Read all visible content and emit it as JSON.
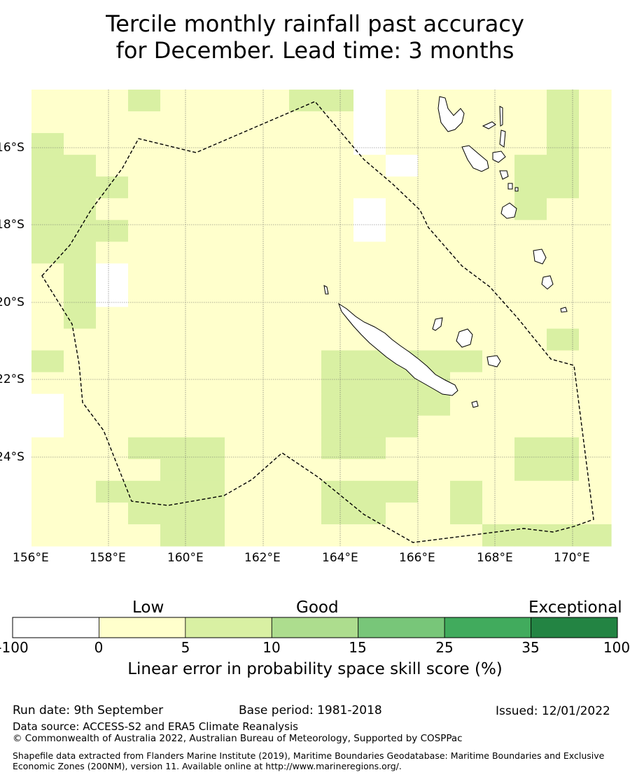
{
  "title_line1": "Tercile monthly rainfall past accuracy",
  "title_line2": "for December. Lead time: 3 months",
  "map": {
    "lon_ticks": [
      "156°E",
      "158°E",
      "160°E",
      "162°E",
      "164°E",
      "166°E",
      "168°E",
      "170°E"
    ],
    "lat_ticks": [
      "16°S",
      "18°S",
      "20°S",
      "22°S",
      "24°S"
    ],
    "colors": {
      "neg": "#ffffff",
      "c0": "#ffffcc",
      "c5": "#d9f0a3",
      "c10": "#addd8e",
      "c15": "#78c679",
      "c25": "#41ab5d",
      "c35": "#238443"
    },
    "grid_columns": 18,
    "grid_rows": 21,
    "skill_grid": [
      "111211112201111121",
      "111111111101111121",
      "211111111101111121",
      "221111111110111221",
      "222111111111111221",
      "221111111101111211",
      "222111111101111111",
      "221111111111111111",
      "120111111111111111",
      "120111111111111111",
      "121111111111111111",
      "111111111111111121",
      "211111111222221111",
      "111111111222211111",
      "011111111222211111",
      "011111111222111111",
      "111222111221111221",
      "111122111111111221",
      "112222111222121111",
      "111222111221121111",
      "111122111111112222"
    ]
  },
  "colorbar": {
    "categories": [
      "Low",
      "Good",
      "Exceptional"
    ],
    "ticks": [
      "-100",
      "0",
      "5",
      "10",
      "15",
      "25",
      "35",
      "100"
    ],
    "label": "Linear error in probability space skill score (%)"
  },
  "footer": {
    "run_date": "Run date: 9th September",
    "base_period": "Base period: 1981-2018",
    "issued": "Issued: 12/01/2022",
    "data_source": "Data source: ACCESS-S2 and ERA5 Climate Reanalysis",
    "copyright": "© Commonwealth of Australia 2022, Australian Bureau of Meteorology, Supported by COSPPac",
    "shapefile": "Shapefile data extracted from Flanders Marine Institute (2019), Maritime Boundaries Geodatabase: Maritime Boundaries and Exclusive Economic Zones (200NM), version 11. Available online at http://www.marineregions.org/."
  }
}
